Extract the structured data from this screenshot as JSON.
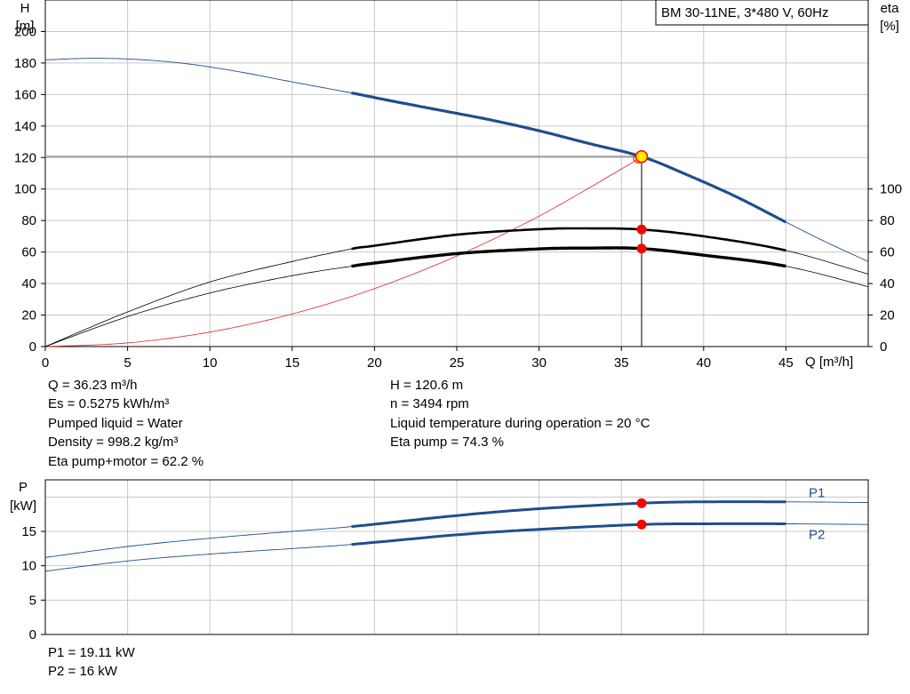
{
  "chart_data": [
    {
      "type": "line",
      "title": "BM 30-11NE, 3*480 V, 60Hz",
      "xlabel": "Q [m³/h]",
      "x_ticks": [
        0,
        5,
        10,
        15,
        20,
        25,
        30,
        35,
        40,
        45
      ],
      "xlim": [
        0,
        50
      ],
      "ylabel_left": {
        "line1": "H",
        "line2": "[m]"
      },
      "ylim_left": [
        0,
        220
      ],
      "y_ticks_left": [
        0,
        20,
        40,
        60,
        80,
        100,
        120,
        140,
        160,
        180,
        200
      ],
      "ylabel_right": {
        "line1": "eta",
        "line2": "[%]"
      },
      "ylim_right": [
        0,
        220
      ],
      "y_ticks_right": [
        0,
        20,
        40,
        60,
        80,
        100
      ],
      "grid": true,
      "colors": {
        "head": "#1f4e8c",
        "efficiency": "#000000",
        "system": "#e02020",
        "marker": "#ff0000",
        "duty_point": "#ffee00",
        "grid": "#c8c8c8"
      },
      "series": [
        {
          "key": "H",
          "axis": "left",
          "color": "#1f4e8c",
          "x": [
            0,
            3,
            6,
            9,
            12,
            15,
            18.6,
            21,
            24,
            27,
            30,
            33,
            36.23,
            39,
            42,
            45,
            47.5,
            50
          ],
          "y": [
            182,
            183,
            182,
            179,
            174,
            168,
            161,
            156,
            150,
            144,
            137,
            129,
            120.6,
            109,
            95,
            79,
            66,
            54
          ],
          "bold_range": [
            18.6,
            45
          ]
        },
        {
          "key": "eta_pump",
          "axis": "right",
          "color": "#000000",
          "x": [
            0,
            5,
            10,
            15,
            18.6,
            20,
            25,
            30,
            33,
            36.23,
            40,
            45,
            50
          ],
          "y": [
            0,
            22,
            41,
            54,
            62,
            64,
            71,
            74.5,
            75,
            74.3,
            70,
            61,
            46
          ],
          "bold_range": [
            18.6,
            45
          ]
        },
        {
          "key": "eta_pump_motor",
          "axis": "right",
          "color": "#000000",
          "x": [
            0,
            5,
            10,
            15,
            18.6,
            20,
            25,
            30,
            33,
            36.23,
            40,
            45,
            50
          ],
          "y": [
            0,
            19,
            34,
            45,
            51,
            53,
            59,
            62,
            62.5,
            62.2,
            58,
            51,
            38
          ],
          "bold_range": [
            18.6,
            45
          ]
        },
        {
          "key": "system_curve",
          "axis": "left",
          "color": "#e02020",
          "x": [
            0,
            5,
            10,
            15,
            20,
            25,
            30,
            35,
            36.23
          ],
          "y": [
            0,
            2.3,
            9.2,
            20.7,
            36.8,
            57.5,
            82.8,
            112.7,
            120.6
          ]
        }
      ],
      "duty_point": {
        "q": 36.23,
        "h": 120.6,
        "eta_pump": 74.3,
        "eta_pump_motor": 62.2
      }
    },
    {
      "type": "line",
      "ylabel": {
        "line1": "P",
        "line2": "[kW]"
      },
      "ylim": [
        0,
        22.5
      ],
      "y_ticks": [
        0,
        5,
        10,
        15
      ],
      "xlim": [
        0,
        50
      ],
      "grid": true,
      "series": [
        {
          "name": "P1",
          "color": "#1f4e8c",
          "x": [
            0,
            5,
            10,
            15,
            18.6,
            25,
            30,
            36.23,
            40,
            45,
            50
          ],
          "y": [
            11.2,
            12.8,
            14,
            15,
            15.7,
            17.3,
            18.3,
            19.11,
            19.3,
            19.3,
            19.2
          ],
          "bold_range": [
            18.6,
            45
          ]
        },
        {
          "name": "P2",
          "color": "#1f4e8c",
          "x": [
            0,
            5,
            10,
            15,
            18.6,
            25,
            30,
            36.23,
            40,
            45,
            50
          ],
          "y": [
            9.2,
            10.7,
            11.7,
            12.5,
            13.1,
            14.5,
            15.3,
            16.0,
            16.1,
            16.1,
            16.0
          ],
          "bold_range": [
            18.6,
            45
          ]
        }
      ],
      "duty_point": {
        "q": 36.23,
        "p1": 19.11,
        "p2": 16.0
      }
    }
  ],
  "info": {
    "left": [
      "Q = 36.23 m³/h",
      "Es = 0.5275 kWh/m³",
      "Pumped liquid = Water",
      "Density = 998.2 kg/m³",
      "Eta pump+motor = 62.2 %"
    ],
    "right": [
      "H = 120.6 m",
      "n = 3494 rpm",
      "Liquid temperature during operation = 20 °C",
      "Eta pump = 74.3 %"
    ],
    "power": [
      "P1 = 19.11 kW",
      "P2 = 16 kW"
    ]
  }
}
